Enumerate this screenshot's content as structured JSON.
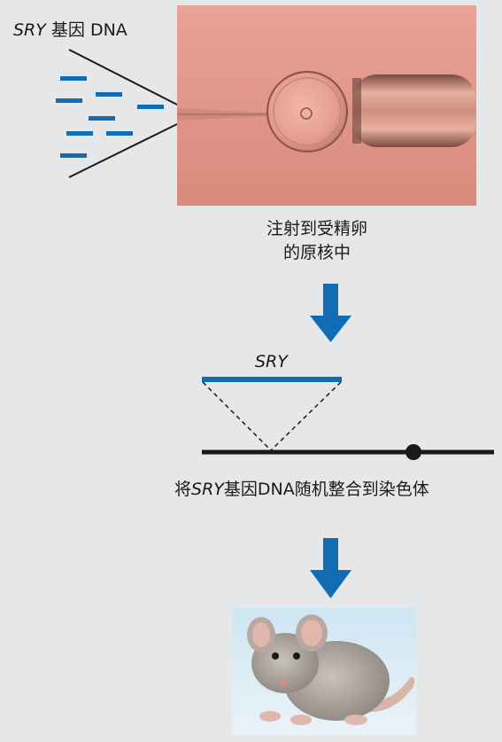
{
  "dna_label": {
    "gene": "SRY",
    "rest": " 基因 DNA"
  },
  "injection_caption": {
    "line1": "注射到受精卵",
    "line2": "的原核中"
  },
  "insert_label": "SRY",
  "integration_caption": {
    "prefix": "将",
    "gene": "SRY",
    "suffix": "基因DNA随机整合到染色体"
  },
  "icons": {
    "arrow": "down-arrow-icon",
    "microscope": "fertilized-egg-injection-photo",
    "mouse": "transgenic-mouse-photo"
  },
  "colors": {
    "accent_blue": "#0f6cb5",
    "background": "#e6e7e9",
    "line": "#1a1a1a"
  }
}
